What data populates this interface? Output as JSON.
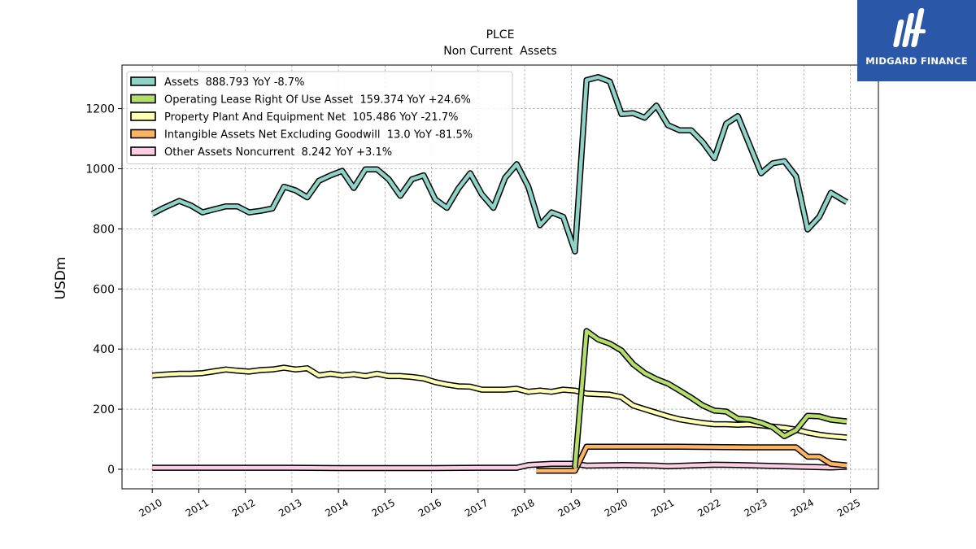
{
  "brand": {
    "name": "MIDGARD FINANCE",
    "bg_color": "#2b57a8"
  },
  "chart_data": {
    "type": "line",
    "title": "PLCE",
    "subtitle": "Non Current  Assets",
    "ylabel": "USDm",
    "xlabel": "",
    "xlim": [
      2009.35,
      2025.6
    ],
    "ylim": [
      -65,
      1345
    ],
    "yticks": [
      0,
      200,
      400,
      600,
      800,
      1000,
      1200
    ],
    "xticks": [
      "2010",
      "2011",
      "2012",
      "2013",
      "2014",
      "2015",
      "2016",
      "2017",
      "2018",
      "2019",
      "2020",
      "2021",
      "2022",
      "2023",
      "2024",
      "2025"
    ],
    "grid": true,
    "legend_position": "top-left",
    "series": [
      {
        "name": "Assets",
        "legend": "Assets  888.793 YoY -8.7%",
        "color": "#8dd3c7",
        "points": [
          [
            2010.0,
            850
          ],
          [
            2010.25,
            870
          ],
          [
            2010.58,
            893
          ],
          [
            2010.83,
            878
          ],
          [
            2011.08,
            855
          ],
          [
            2011.33,
            865
          ],
          [
            2011.58,
            875
          ],
          [
            2011.83,
            875
          ],
          [
            2012.08,
            855
          ],
          [
            2012.33,
            860
          ],
          [
            2012.58,
            868
          ],
          [
            2012.83,
            940
          ],
          [
            2013.08,
            928
          ],
          [
            2013.33,
            905
          ],
          [
            2013.58,
            960
          ],
          [
            2013.83,
            978
          ],
          [
            2014.08,
            993
          ],
          [
            2014.33,
            936
          ],
          [
            2014.58,
            998
          ],
          [
            2014.83,
            998
          ],
          [
            2015.08,
            965
          ],
          [
            2015.33,
            910
          ],
          [
            2015.58,
            965
          ],
          [
            2015.83,
            978
          ],
          [
            2016.08,
            898
          ],
          [
            2016.33,
            870
          ],
          [
            2016.58,
            935
          ],
          [
            2016.83,
            985
          ],
          [
            2017.08,
            915
          ],
          [
            2017.33,
            870
          ],
          [
            2017.58,
            970
          ],
          [
            2017.83,
            1015
          ],
          [
            2018.08,
            940
          ],
          [
            2018.33,
            812
          ],
          [
            2018.58,
            855
          ],
          [
            2018.83,
            840
          ],
          [
            2019.08,
            725
          ],
          [
            2019.33,
            1295
          ],
          [
            2019.58,
            1305
          ],
          [
            2019.83,
            1290
          ],
          [
            2020.08,
            1182
          ],
          [
            2020.33,
            1185
          ],
          [
            2020.58,
            1170
          ],
          [
            2020.83,
            1210
          ],
          [
            2021.08,
            1145
          ],
          [
            2021.33,
            1128
          ],
          [
            2021.58,
            1128
          ],
          [
            2021.83,
            1088
          ],
          [
            2022.08,
            1035
          ],
          [
            2022.33,
            1150
          ],
          [
            2022.58,
            1175
          ],
          [
            2022.83,
            1080
          ],
          [
            2023.08,
            985
          ],
          [
            2023.33,
            1018
          ],
          [
            2023.58,
            1025
          ],
          [
            2023.83,
            975
          ],
          [
            2024.08,
            798
          ],
          [
            2024.33,
            840
          ],
          [
            2024.58,
            920
          ],
          [
            2024.92,
            888.793
          ]
        ]
      },
      {
        "name": "Operating Lease Right Of Use Asset",
        "legend": "Operating Lease Right Of Use Asset  159.374 YoY +24.6%",
        "color": "#b3de69",
        "points": [
          [
            2019.08,
            5
          ],
          [
            2019.33,
            460
          ],
          [
            2019.58,
            432
          ],
          [
            2019.83,
            418
          ],
          [
            2020.08,
            395
          ],
          [
            2020.33,
            350
          ],
          [
            2020.58,
            320
          ],
          [
            2020.83,
            300
          ],
          [
            2021.08,
            285
          ],
          [
            2021.33,
            262
          ],
          [
            2021.58,
            238
          ],
          [
            2021.83,
            212
          ],
          [
            2022.08,
            195
          ],
          [
            2022.33,
            192
          ],
          [
            2022.58,
            168
          ],
          [
            2022.83,
            165
          ],
          [
            2023.08,
            155
          ],
          [
            2023.33,
            140
          ],
          [
            2023.58,
            110
          ],
          [
            2023.83,
            130
          ],
          [
            2024.08,
            178
          ],
          [
            2024.33,
            176
          ],
          [
            2024.58,
            165
          ],
          [
            2024.92,
            159.374
          ]
        ]
      },
      {
        "name": "Property Plant And Equipment Net",
        "legend": "Property Plant And Equipment Net  105.486 YoY -21.7%",
        "color": "#ffffb3",
        "points": [
          [
            2010.0,
            312
          ],
          [
            2010.25,
            315
          ],
          [
            2010.58,
            318
          ],
          [
            2010.83,
            318
          ],
          [
            2011.08,
            320
          ],
          [
            2011.33,
            326
          ],
          [
            2011.58,
            332
          ],
          [
            2011.83,
            328
          ],
          [
            2012.08,
            325
          ],
          [
            2012.33,
            330
          ],
          [
            2012.58,
            332
          ],
          [
            2012.83,
            338
          ],
          [
            2013.08,
            332
          ],
          [
            2013.33,
            336
          ],
          [
            2013.58,
            312
          ],
          [
            2013.83,
            318
          ],
          [
            2014.08,
            312
          ],
          [
            2014.33,
            316
          ],
          [
            2014.58,
            310
          ],
          [
            2014.83,
            318
          ],
          [
            2015.08,
            310
          ],
          [
            2015.33,
            310
          ],
          [
            2015.58,
            307
          ],
          [
            2015.83,
            302
          ],
          [
            2016.08,
            290
          ],
          [
            2016.33,
            282
          ],
          [
            2016.58,
            276
          ],
          [
            2016.83,
            275
          ],
          [
            2017.08,
            265
          ],
          [
            2017.33,
            265
          ],
          [
            2017.58,
            265
          ],
          [
            2017.83,
            268
          ],
          [
            2018.08,
            258
          ],
          [
            2018.33,
            262
          ],
          [
            2018.58,
            258
          ],
          [
            2018.83,
            265
          ],
          [
            2019.08,
            262
          ],
          [
            2019.33,
            252
          ],
          [
            2019.58,
            250
          ],
          [
            2019.83,
            248
          ],
          [
            2020.08,
            240
          ],
          [
            2020.33,
            212
          ],
          [
            2020.58,
            200
          ],
          [
            2020.83,
            188
          ],
          [
            2021.08,
            176
          ],
          [
            2021.33,
            166
          ],
          [
            2021.58,
            160
          ],
          [
            2021.83,
            154
          ],
          [
            2022.08,
            150
          ],
          [
            2022.33,
            150
          ],
          [
            2022.58,
            148
          ],
          [
            2022.83,
            150
          ],
          [
            2023.08,
            146
          ],
          [
            2023.33,
            142
          ],
          [
            2023.58,
            138
          ],
          [
            2023.83,
            132
          ],
          [
            2024.08,
            122
          ],
          [
            2024.33,
            115
          ],
          [
            2024.58,
            110
          ],
          [
            2024.92,
            105.486
          ]
        ]
      },
      {
        "name": "Intangible Assets Net Excluding Goodwill",
        "legend": "Intangible Assets Net Excluding Goodwill  13.0 YoY -81.5%",
        "color": "#fdb462",
        "points": [
          [
            2018.25,
            -5
          ],
          [
            2018.58,
            -5
          ],
          [
            2019.08,
            -5
          ],
          [
            2019.33,
            75
          ],
          [
            2019.58,
            75
          ],
          [
            2020.08,
            75
          ],
          [
            2021.33,
            75
          ],
          [
            2022.08,
            74
          ],
          [
            2022.83,
            73
          ],
          [
            2023.83,
            73
          ],
          [
            2024.08,
            42
          ],
          [
            2024.33,
            42
          ],
          [
            2024.58,
            18
          ],
          [
            2024.92,
            13.0
          ]
        ]
      },
      {
        "name": "Other Assets Noncurrent",
        "legend": "Other Assets Noncurrent  8.242 YoY +3.1%",
        "color": "#fccde5",
        "points": [
          [
            2010.0,
            5
          ],
          [
            2011.0,
            5
          ],
          [
            2012.0,
            5
          ],
          [
            2013.0,
            5
          ],
          [
            2014.0,
            4
          ],
          [
            2015.0,
            4
          ],
          [
            2016.0,
            4
          ],
          [
            2017.0,
            5
          ],
          [
            2017.83,
            5
          ],
          [
            2018.08,
            14
          ],
          [
            2018.58,
            18
          ],
          [
            2019.08,
            18
          ],
          [
            2019.33,
            12
          ],
          [
            2020.08,
            14
          ],
          [
            2020.83,
            12
          ],
          [
            2021.08,
            10
          ],
          [
            2021.58,
            13
          ],
          [
            2022.08,
            15
          ],
          [
            2022.58,
            14
          ],
          [
            2023.08,
            12
          ],
          [
            2023.58,
            10
          ],
          [
            2024.08,
            8
          ],
          [
            2024.58,
            6
          ],
          [
            2024.92,
            8.242
          ]
        ]
      }
    ]
  }
}
